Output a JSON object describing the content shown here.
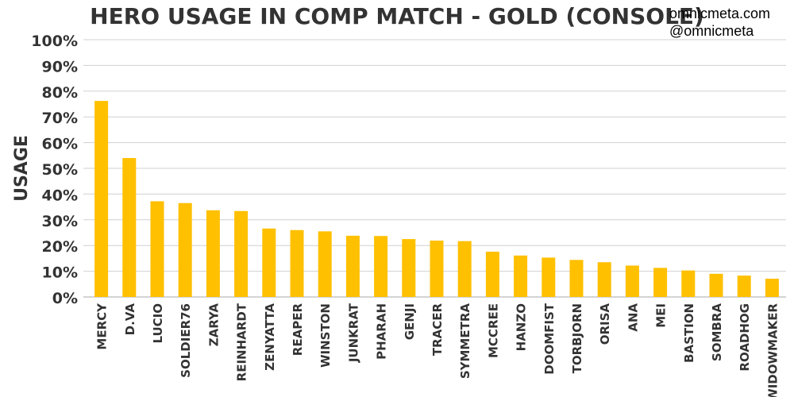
{
  "chart_data": {
    "type": "bar",
    "title": "HERO USAGE IN COMP MATCH - GOLD (CONSOLE)",
    "ylabel": "USAGE",
    "xlabel": "",
    "ylim": [
      0,
      100
    ],
    "yticks": [
      "0%",
      "10%",
      "20%",
      "30%",
      "40%",
      "50%",
      "60%",
      "70%",
      "80%",
      "90%",
      "100%"
    ],
    "grid": true,
    "bar_color": "#FFC000",
    "categories": [
      "MERCY",
      "D.VA",
      "LUCIO",
      "SOLDIER76",
      "ZARYA",
      "REINHARDT",
      "ZENYATTA",
      "REAPER",
      "WINSTON",
      "JUNKRAT",
      "PHARAH",
      "GENJI",
      "TRACER",
      "SYMMETRA",
      "MCCREE",
      "HANZO",
      "DOOMFIST",
      "TORBJORN",
      "ORISA",
      "ANA",
      "MEI",
      "BASTION",
      "SOMBRA",
      "ROADHOG",
      "WIDOWMAKER"
    ],
    "values": [
      76.2,
      54.0,
      37.2,
      36.5,
      33.7,
      33.4,
      26.6,
      26.0,
      25.5,
      23.8,
      23.7,
      22.5,
      21.9,
      21.7,
      17.6,
      16.1,
      15.3,
      14.4,
      13.5,
      12.2,
      11.3,
      10.3,
      9.0,
      8.3,
      7.1
    ]
  },
  "watermark": {
    "site": "omnicmeta.com",
    "handle": "@omnicmeta"
  }
}
